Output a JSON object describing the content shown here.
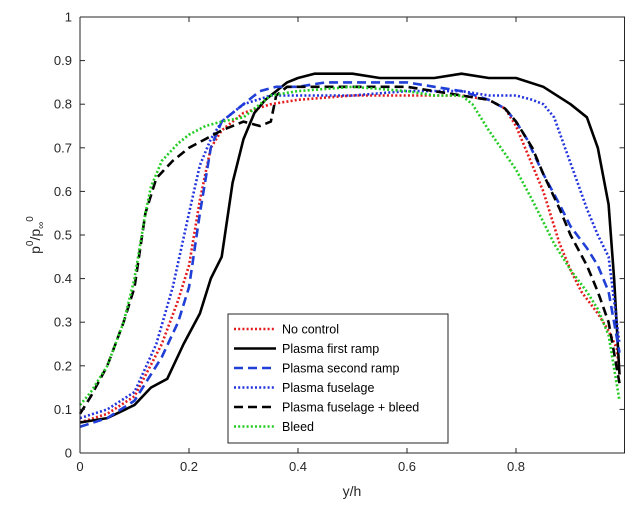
{
  "chart_data": {
    "type": "line",
    "title": "",
    "xlabel": "y/h",
    "ylabel_base": "p",
    "ylabel_sup_top": "0",
    "ylabel_sub": "/p",
    "ylabel_inf": "∞",
    "ylabel_sup_bottom": "0",
    "xlim": [
      0,
      1
    ],
    "ylim": [
      0,
      1
    ],
    "xticks": [
      0,
      0.2,
      0.4,
      0.6,
      0.8
    ],
    "xtick_labels": [
      "0",
      "0.2",
      "0.4",
      "0.6",
      "0.8"
    ],
    "yticks": [
      0,
      0.1,
      0.2,
      0.3,
      0.4,
      0.5,
      0.6,
      0.7,
      0.8,
      0.9,
      1
    ],
    "ytick_labels": [
      "0",
      "0.1",
      "0.2",
      "0.3",
      "0.4",
      "0.5",
      "0.6",
      "0.7",
      "0.8",
      "0.9",
      "1"
    ],
    "grid": false,
    "legend_position": "bottom-center",
    "series": [
      {
        "name": "No control",
        "color": "#e41a1c",
        "dash": "dotted",
        "x": [
          0,
          0.05,
          0.1,
          0.15,
          0.18,
          0.2,
          0.22,
          0.24,
          0.26,
          0.28,
          0.3,
          0.35,
          0.4,
          0.5,
          0.6,
          0.65,
          0.7,
          0.75,
          0.78,
          0.8,
          0.82,
          0.85,
          0.88,
          0.9,
          0.92,
          0.95,
          0.97,
          0.985,
          0.99
        ],
        "y": [
          0.07,
          0.09,
          0.13,
          0.25,
          0.35,
          0.43,
          0.58,
          0.7,
          0.74,
          0.76,
          0.78,
          0.8,
          0.81,
          0.82,
          0.82,
          0.82,
          0.82,
          0.81,
          0.79,
          0.75,
          0.69,
          0.6,
          0.48,
          0.42,
          0.37,
          0.32,
          0.28,
          0.24,
          0.18
        ]
      },
      {
        "name": "Plasma first ramp",
        "color": "#000000",
        "dash": "solid",
        "x": [
          0,
          0.05,
          0.1,
          0.13,
          0.16,
          0.19,
          0.22,
          0.24,
          0.26,
          0.28,
          0.3,
          0.32,
          0.34,
          0.36,
          0.38,
          0.4,
          0.43,
          0.5,
          0.55,
          0.6,
          0.65,
          0.7,
          0.75,
          0.8,
          0.85,
          0.9,
          0.93,
          0.95,
          0.97,
          0.98,
          0.99
        ],
        "y": [
          0.07,
          0.08,
          0.11,
          0.15,
          0.17,
          0.25,
          0.32,
          0.4,
          0.45,
          0.62,
          0.72,
          0.78,
          0.81,
          0.83,
          0.85,
          0.86,
          0.87,
          0.87,
          0.86,
          0.86,
          0.86,
          0.87,
          0.86,
          0.86,
          0.84,
          0.8,
          0.77,
          0.7,
          0.57,
          0.4,
          0.18
        ]
      },
      {
        "name": "Plasma second ramp",
        "color": "#1f3fd6",
        "dash": "dashed",
        "x": [
          0,
          0.05,
          0.1,
          0.15,
          0.18,
          0.2,
          0.22,
          0.24,
          0.26,
          0.28,
          0.3,
          0.33,
          0.36,
          0.4,
          0.45,
          0.5,
          0.6,
          0.65,
          0.7,
          0.75,
          0.78,
          0.8,
          0.82,
          0.85,
          0.88,
          0.9,
          0.93,
          0.95,
          0.97,
          0.99
        ],
        "y": [
          0.06,
          0.08,
          0.12,
          0.22,
          0.3,
          0.38,
          0.55,
          0.7,
          0.76,
          0.78,
          0.8,
          0.83,
          0.84,
          0.84,
          0.85,
          0.85,
          0.85,
          0.84,
          0.83,
          0.81,
          0.79,
          0.76,
          0.72,
          0.64,
          0.57,
          0.52,
          0.47,
          0.43,
          0.37,
          0.23
        ]
      },
      {
        "name": "Plasma fuselage",
        "color": "#2233dd",
        "dash": "dotted",
        "x": [
          0,
          0.05,
          0.1,
          0.14,
          0.17,
          0.2,
          0.22,
          0.24,
          0.26,
          0.28,
          0.3,
          0.35,
          0.4,
          0.5,
          0.6,
          0.65,
          0.7,
          0.75,
          0.8,
          0.83,
          0.85,
          0.87,
          0.89,
          0.91,
          0.93,
          0.95,
          0.97,
          0.99
        ],
        "y": [
          0.08,
          0.1,
          0.14,
          0.25,
          0.38,
          0.55,
          0.66,
          0.72,
          0.76,
          0.78,
          0.8,
          0.82,
          0.82,
          0.82,
          0.83,
          0.83,
          0.83,
          0.82,
          0.82,
          0.81,
          0.8,
          0.77,
          0.7,
          0.63,
          0.56,
          0.5,
          0.45,
          0.25
        ]
      },
      {
        "name": "Plasma fuselage + bleed",
        "color": "#000000",
        "dash": "dashed",
        "x": [
          0,
          0.02,
          0.05,
          0.08,
          0.1,
          0.12,
          0.14,
          0.17,
          0.2,
          0.23,
          0.26,
          0.3,
          0.33,
          0.35,
          0.36,
          0.38,
          0.4,
          0.5,
          0.6,
          0.7,
          0.75,
          0.78,
          0.8,
          0.83,
          0.85,
          0.88,
          0.9,
          0.93,
          0.95,
          0.97,
          0.99
        ],
        "y": [
          0.09,
          0.13,
          0.2,
          0.3,
          0.38,
          0.55,
          0.63,
          0.67,
          0.7,
          0.72,
          0.74,
          0.76,
          0.75,
          0.76,
          0.82,
          0.84,
          0.84,
          0.84,
          0.84,
          0.82,
          0.81,
          0.79,
          0.76,
          0.7,
          0.64,
          0.56,
          0.5,
          0.43,
          0.37,
          0.3,
          0.16
        ]
      },
      {
        "name": "Bleed",
        "color": "#22cc22",
        "dash": "dotted",
        "x": [
          0,
          0.02,
          0.05,
          0.08,
          0.1,
          0.12,
          0.13,
          0.15,
          0.18,
          0.2,
          0.23,
          0.26,
          0.3,
          0.35,
          0.4,
          0.5,
          0.6,
          0.65,
          0.7,
          0.72,
          0.75,
          0.8,
          0.83,
          0.85,
          0.87,
          0.9,
          0.93,
          0.95,
          0.97,
          0.99
        ],
        "y": [
          0.11,
          0.14,
          0.2,
          0.3,
          0.4,
          0.55,
          0.61,
          0.67,
          0.71,
          0.73,
          0.75,
          0.76,
          0.77,
          0.82,
          0.83,
          0.84,
          0.83,
          0.82,
          0.82,
          0.8,
          0.74,
          0.65,
          0.58,
          0.53,
          0.48,
          0.42,
          0.37,
          0.33,
          0.27,
          0.12
        ]
      }
    ]
  }
}
